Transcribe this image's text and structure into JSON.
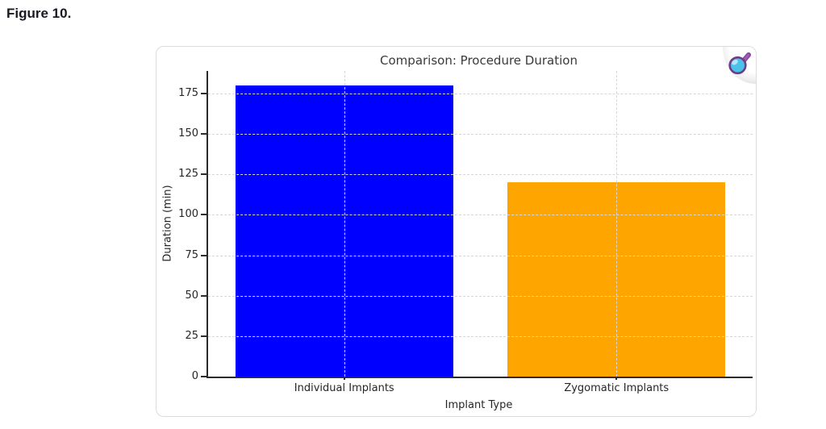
{
  "figure_label": "Figure 10.",
  "chart_data": {
    "type": "bar",
    "title": "Comparison: Procedure Duration",
    "xlabel": "Implant Type",
    "ylabel": "Duration (min)",
    "categories": [
      "Individual Implants",
      "Zygomatic Implants"
    ],
    "values": [
      180,
      120
    ],
    "bar_colors": [
      "#0000ff",
      "#ffa500"
    ],
    "ylim": [
      0,
      189
    ],
    "yticks": [
      0,
      25,
      50,
      75,
      100,
      125,
      150,
      175
    ],
    "bar_width_fraction": 0.8,
    "grid": {
      "show": true,
      "style": "dashed",
      "axes": "both",
      "color": "#d7d7d7",
      "above_bars": true
    },
    "legend": "none"
  },
  "toolbar": {
    "zoom_icon": "magnifier-icon"
  },
  "colors": {
    "bar_individual": "#0000ff",
    "bar_zygomatic": "#ffa500",
    "axis_text": "#262626",
    "title_text": "#3a3a3a",
    "spine": "#2b2b2b",
    "gridline": "#d7d7d7",
    "card_border": "#dcdcdc",
    "background": "#ffffff",
    "magnifier_lens": "#4cc2e8",
    "magnifier_rim": "#6e3d86"
  }
}
